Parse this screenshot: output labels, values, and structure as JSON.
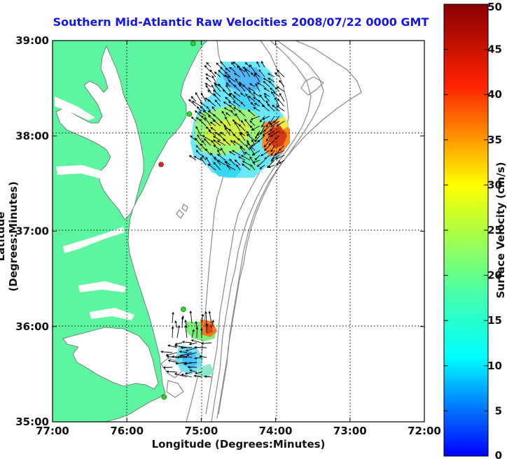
{
  "title": "Southern Mid-Atlantic Raw Velocities 2008/07/22 0000 GMT",
  "xlabel": "Longitude (Degrees:Minutes)",
  "ylabel": "Latitude (Degrees:Minutes)",
  "colorbar_label": "Surface Velocity (cm/s)",
  "colors": {
    "land": "#5ef5a0",
    "title": "#1414e6",
    "arrows": "#000000",
    "depth_contours": "#888888",
    "station_marker": "#22dd22",
    "station_marker_alt": "#dd2222"
  },
  "chart_data": {
    "type": "map",
    "x_ticks": [
      "77:00",
      "76:00",
      "75:00",
      "74:00",
      "73:00",
      "72:00"
    ],
    "y_ticks": [
      "39:00",
      "38:00",
      "37:00",
      "36:00",
      "35:00"
    ],
    "xlim": [
      -77,
      -72
    ],
    "ylim": [
      35,
      39
    ],
    "grid": "dotted",
    "colorbar": {
      "min": 0,
      "max": 50,
      "ticks": [
        "0",
        "5",
        "10",
        "15",
        "20",
        "25",
        "30",
        "35",
        "40",
        "45",
        "50"
      ]
    },
    "stations": [
      {
        "lon": -75.11,
        "lat": 38.97,
        "color": "green"
      },
      {
        "lon": -75.16,
        "lat": 38.23,
        "color": "green"
      },
      {
        "lon": -75.54,
        "lat": 37.7,
        "color": "red"
      },
      {
        "lon": -75.24,
        "lat": 36.18,
        "color": "green"
      },
      {
        "lon": -75.5,
        "lat": 35.26,
        "color": "green"
      }
    ]
  }
}
